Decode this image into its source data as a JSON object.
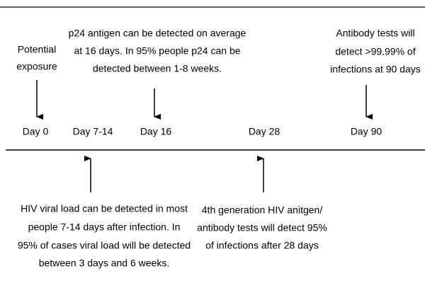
{
  "timeline": {
    "days": [
      "Day 0",
      "Day 7-14",
      "Day 16",
      "Day 28",
      "Day 90"
    ]
  },
  "annotations_above": [
    {
      "lines": [
        "Potential",
        "exposure"
      ]
    },
    {
      "lines": [
        "p24 antigen can be detected on average",
        "at 16 days. In 95% people p24 can be",
        "detected between 1-8 weeks."
      ]
    },
    {
      "lines": [
        "Antibody tests will",
        "detect >99.99% of",
        "infections at 90 days"
      ]
    }
  ],
  "annotations_below": [
    {
      "lines": [
        "HIV viral load can be detected in most",
        "people 7-14 days after infection. In",
        "95% of cases viral load will be detected",
        "between 3 days and 6 weeks."
      ]
    },
    {
      "lines": [
        "4th generation HIV anitgen/",
        "antibody tests will detect 95%",
        "of infections after 28 days"
      ]
    }
  ]
}
